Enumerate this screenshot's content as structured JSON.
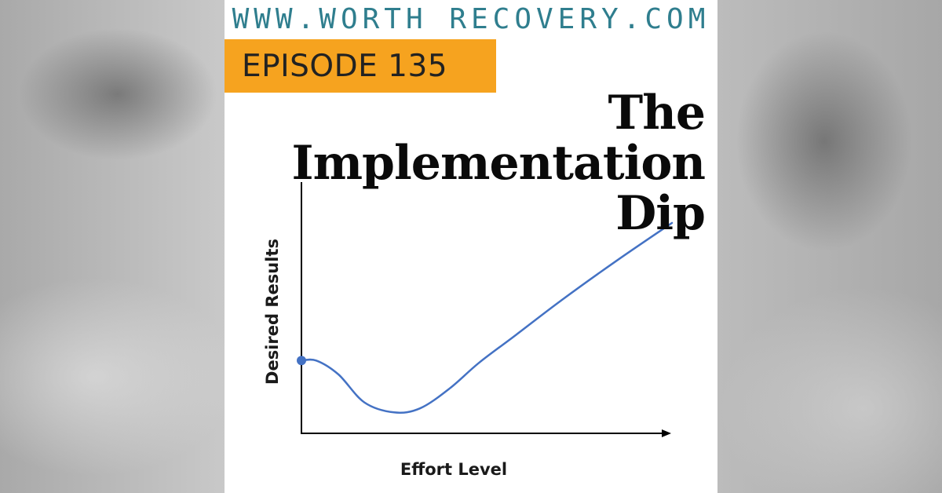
{
  "site": {
    "url": "WWW.WORTH RECOVERY.COM"
  },
  "episode": {
    "label": "EPISODE 135",
    "badge_color": "#f6a31f"
  },
  "title": {
    "lines": [
      "The",
      "Implementation",
      "Dip"
    ]
  },
  "colors": {
    "url_text": "#2f7e8e",
    "curve": "#4472c4",
    "axis": "#000000"
  },
  "chart_data": {
    "type": "line",
    "xlabel": "Effort Level",
    "ylabel": "Desired Results",
    "ticks_shown": false,
    "grid": false,
    "xlim": [
      0,
      100
    ],
    "ylim": [
      0,
      100
    ],
    "series": [
      {
        "x": [
          0,
          4,
          10,
          17,
          25,
          32,
          40,
          48,
          58,
          70,
          85,
          100
        ],
        "y": [
          31,
          31,
          24,
          10,
          5,
          7,
          17,
          30,
          44,
          61,
          81,
          100
        ],
        "marker_at_start": true
      }
    ]
  }
}
